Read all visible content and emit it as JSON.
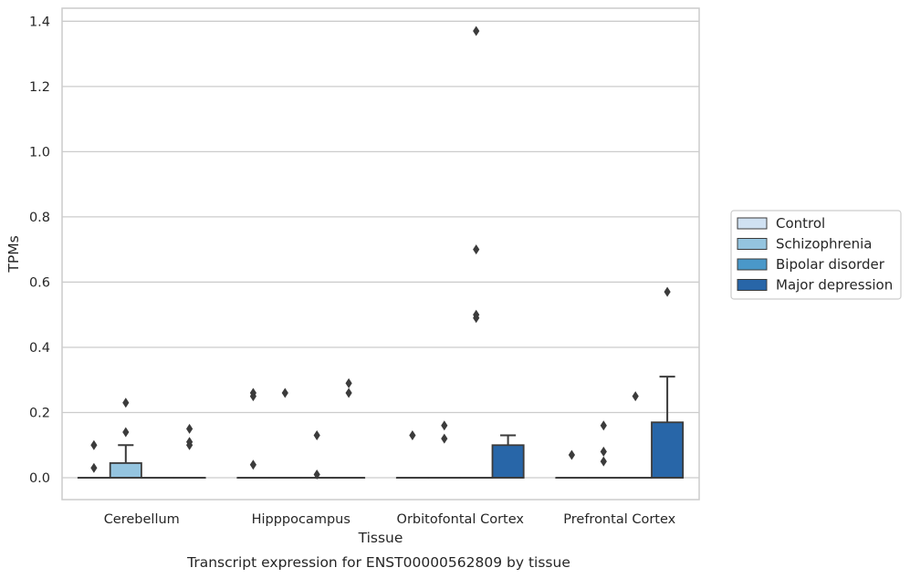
{
  "chart_data": {
    "type": "box",
    "title": "",
    "caption": "Transcript expression for ENST00000562809 by tissue",
    "xlabel": "Tissue",
    "ylabel": "TPMs",
    "ylim": [
      -0.067,
      1.44
    ],
    "yticks": [
      0.0,
      0.2,
      0.4,
      0.6,
      0.8,
      1.0,
      1.2,
      1.4
    ],
    "ytick_labels": [
      "0.0",
      "0.2",
      "0.4",
      "0.6",
      "0.8",
      "1.0",
      "1.2",
      "1.4"
    ],
    "grid": "horizontal",
    "legend_position": "right",
    "categories": [
      "Cerebellum",
      "Hipppocampus",
      "Orbitofontal Cortex",
      "Prefrontal Cortex"
    ],
    "series": [
      {
        "name": "Control",
        "color": "#d0e1f2",
        "boxes": [
          {
            "q1": 0,
            "median": 0,
            "q3": 0,
            "whisker_low": 0,
            "whisker_high": 0,
            "outliers": [
              0.03,
              0.1
            ]
          },
          {
            "q1": 0,
            "median": 0,
            "q3": 0,
            "whisker_low": 0,
            "whisker_high": 0,
            "outliers": [
              0.04,
              0.25,
              0.26
            ]
          },
          {
            "q1": 0,
            "median": 0,
            "q3": 0,
            "whisker_low": 0,
            "whisker_high": 0,
            "outliers": [
              0.13
            ]
          },
          {
            "q1": 0,
            "median": 0,
            "q3": 0,
            "whisker_low": 0,
            "whisker_high": 0,
            "outliers": [
              0.07
            ]
          }
        ]
      },
      {
        "name": "Schizophrenia",
        "color": "#94c4df",
        "boxes": [
          {
            "q1": 0,
            "median": 0,
            "q3": 0.045,
            "whisker_low": 0,
            "whisker_high": 0.1,
            "outliers": [
              0.14,
              0.23
            ]
          },
          {
            "q1": 0,
            "median": 0,
            "q3": 0,
            "whisker_low": 0,
            "whisker_high": 0,
            "outliers": [
              0.26
            ]
          },
          {
            "q1": 0,
            "median": 0,
            "q3": 0,
            "whisker_low": 0,
            "whisker_high": 0,
            "outliers": [
              0.12,
              0.16
            ]
          },
          {
            "q1": 0,
            "median": 0,
            "q3": 0,
            "whisker_low": 0,
            "whisker_high": 0,
            "outliers": [
              0.05,
              0.08,
              0.16
            ]
          }
        ]
      },
      {
        "name": "Bipolar disorder",
        "color": "#4a98c9",
        "boxes": [
          {
            "q1": 0,
            "median": 0,
            "q3": 0,
            "whisker_low": 0,
            "whisker_high": 0,
            "outliers": []
          },
          {
            "q1": 0,
            "median": 0,
            "q3": 0,
            "whisker_low": 0,
            "whisker_high": 0,
            "outliers": [
              0.01,
              0.13
            ]
          },
          {
            "q1": 0,
            "median": 0,
            "q3": 0,
            "whisker_low": 0,
            "whisker_high": 0,
            "outliers": [
              0.49,
              0.5,
              0.7,
              1.37
            ]
          },
          {
            "q1": 0,
            "median": 0,
            "q3": 0,
            "whisker_low": 0,
            "whisker_high": 0,
            "outliers": [
              0.25
            ]
          }
        ]
      },
      {
        "name": "Major depression",
        "color": "#2866a8",
        "boxes": [
          {
            "q1": 0,
            "median": 0,
            "q3": 0,
            "whisker_low": 0,
            "whisker_high": 0,
            "outliers": [
              0.1,
              0.11,
              0.15
            ]
          },
          {
            "q1": 0,
            "median": 0,
            "q3": 0,
            "whisker_low": 0,
            "whisker_high": 0,
            "outliers": [
              0.26,
              0.29
            ]
          },
          {
            "q1": 0,
            "median": 0,
            "q3": 0.1,
            "whisker_low": 0,
            "whisker_high": 0.13,
            "outliers": []
          },
          {
            "q1": 0,
            "median": 0,
            "q3": 0.17,
            "whisker_low": 0,
            "whisker_high": 0.31,
            "outliers": [
              0.57
            ]
          }
        ]
      }
    ]
  }
}
